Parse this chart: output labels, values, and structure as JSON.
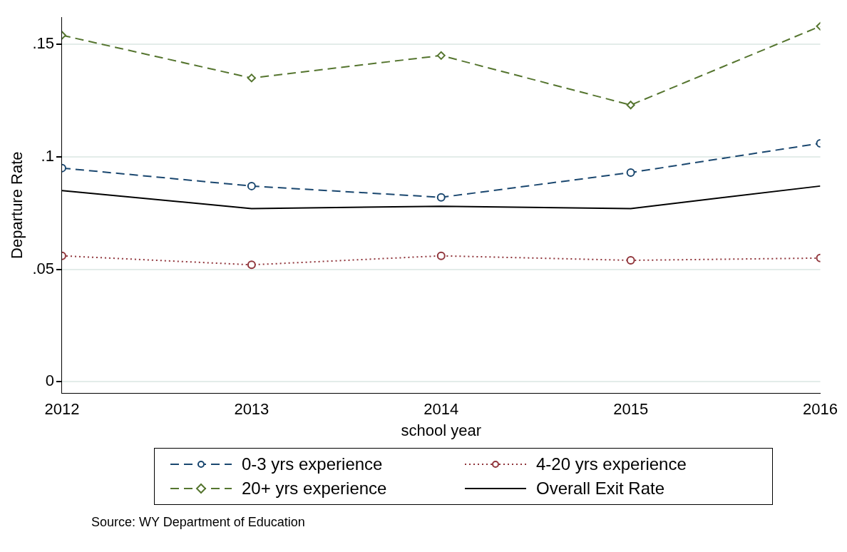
{
  "chart_data": {
    "type": "line",
    "xlabel": "school year",
    "ylabel": "Departure Rate",
    "x": [
      2012,
      2013,
      2014,
      2015,
      2016
    ],
    "xlim": [
      2012,
      2016
    ],
    "xticks": [
      2012,
      2013,
      2014,
      2015,
      2016
    ],
    "ylim": [
      -0.005,
      0.162
    ],
    "yticks": [
      0,
      {
        "value": 0.05,
        "label": ".05"
      },
      {
        "value": 0.1,
        "label": ".1"
      },
      {
        "value": 0.15,
        "label": ".15"
      }
    ],
    "grid": "y",
    "legend": "bottom",
    "series": [
      {
        "name": "0-3 yrs experience",
        "color": "#1a476f",
        "values": [
          0.095,
          0.087,
          0.082,
          0.093,
          0.106
        ],
        "marker": "circle",
        "line_style": "dashed"
      },
      {
        "name": "4-20 yrs experience",
        "color": "#90353b",
        "values": [
          0.056,
          0.052,
          0.056,
          0.054,
          0.055
        ],
        "marker": "circle",
        "line_style": "dotted"
      },
      {
        "name": "20+ yrs experience",
        "color": "#55752f",
        "values": [
          0.154,
          0.135,
          0.145,
          0.123,
          0.158
        ],
        "marker": "diamond",
        "line_style": "dashed"
      },
      {
        "name": "Overall Exit Rate",
        "color": "#000000",
        "values": [
          0.085,
          0.077,
          0.078,
          0.077,
          0.087
        ],
        "marker": "none",
        "line_style": "solid"
      }
    ],
    "annotations": [
      "Source: WY Department of Education"
    ]
  }
}
